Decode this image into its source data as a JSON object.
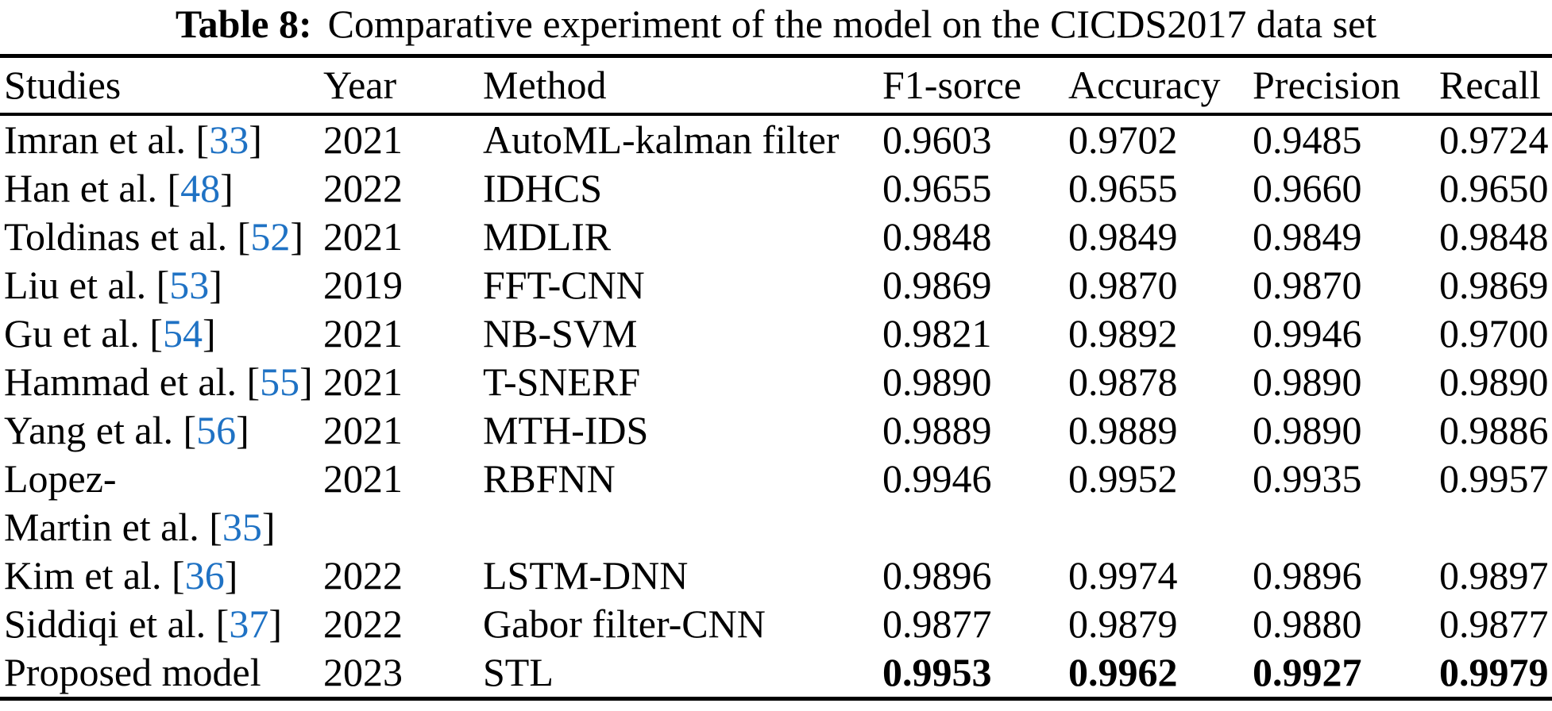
{
  "caption": {
    "label": "Table 8:",
    "text": "Comparative experiment of the model on the CICDS2017 data set"
  },
  "table": {
    "columns": [
      "Studies",
      "Year",
      "Method",
      "F1-sorce",
      "Accuracy",
      "Precision",
      "Recall"
    ],
    "rows": [
      {
        "study": [
          {
            "text": "Imran et al. ["
          },
          {
            "text": "33",
            "citation": true
          },
          {
            "text": "]"
          }
        ],
        "year": "2021",
        "method": "AutoML-kalman filter",
        "f1": "0.9603",
        "accuracy": "0.9702",
        "precision": "0.9485",
        "recall": "0.9724",
        "metrics_bold": false
      },
      {
        "study": [
          {
            "text": "Han et al. ["
          },
          {
            "text": "48",
            "citation": true
          },
          {
            "text": "]"
          }
        ],
        "year": "2022",
        "method": "IDHCS",
        "f1": "0.9655",
        "accuracy": "0.9655",
        "precision": "0.9660",
        "recall": "0.9650",
        "metrics_bold": false
      },
      {
        "study": [
          {
            "text": "Toldinas et al. ["
          },
          {
            "text": "52",
            "citation": true
          },
          {
            "text": "]"
          }
        ],
        "year": "2021",
        "method": "MDLIR",
        "f1": "0.9848",
        "accuracy": "0.9849",
        "precision": "0.9849",
        "recall": "0.9848",
        "metrics_bold": false
      },
      {
        "study": [
          {
            "text": "Liu et al. ["
          },
          {
            "text": "53",
            "citation": true
          },
          {
            "text": "]"
          }
        ],
        "year": "2019",
        "method": "FFT-CNN",
        "f1": "0.9869",
        "accuracy": "0.9870",
        "precision": "0.9870",
        "recall": "0.9869",
        "metrics_bold": false
      },
      {
        "study": [
          {
            "text": "Gu et al. ["
          },
          {
            "text": "54",
            "citation": true
          },
          {
            "text": "]"
          }
        ],
        "year": "2021",
        "method": "NB-SVM",
        "f1": "0.9821",
        "accuracy": "0.9892",
        "precision": "0.9946",
        "recall": "0.9700",
        "metrics_bold": false
      },
      {
        "study": [
          {
            "text": "Hammad et al. ["
          },
          {
            "text": "55",
            "citation": true
          },
          {
            "text": "]"
          }
        ],
        "year": "2021",
        "method": "T-SNERF",
        "f1": "0.9890",
        "accuracy": "0.9878",
        "precision": "0.9890",
        "recall": "0.9890",
        "metrics_bold": false
      },
      {
        "study": [
          {
            "text": "Yang et al. ["
          },
          {
            "text": "56",
            "citation": true
          },
          {
            "text": "]"
          }
        ],
        "year": "2021",
        "method": "MTH-IDS",
        "f1": "0.9889",
        "accuracy": "0.9889",
        "precision": "0.9890",
        "recall": "0.9886",
        "metrics_bold": false
      },
      {
        "study": [
          {
            "text": "Lopez-"
          },
          {
            "break": true
          },
          {
            "text": "Martin et al. ["
          },
          {
            "text": "35",
            "citation": true
          },
          {
            "text": "]"
          }
        ],
        "year": "2021",
        "method": "RBFNN",
        "f1": "0.9946",
        "accuracy": "0.9952",
        "precision": "0.9935",
        "recall": "0.9957",
        "metrics_bold": false
      },
      {
        "study": [
          {
            "text": "Kim et al. ["
          },
          {
            "text": "36",
            "citation": true
          },
          {
            "text": "]"
          }
        ],
        "year": "2022",
        "method": "LSTM-DNN",
        "f1": "0.9896",
        "accuracy": "0.9974",
        "precision": "0.9896",
        "recall": "0.9897",
        "metrics_bold": false
      },
      {
        "study": [
          {
            "text": "Siddiqi et al. ["
          },
          {
            "text": "37",
            "citation": true
          },
          {
            "text": "]"
          }
        ],
        "year": "2022",
        "method": "Gabor filter-CNN",
        "f1": "0.9877",
        "accuracy": "0.9879",
        "precision": "0.9880",
        "recall": "0.9877",
        "metrics_bold": false
      },
      {
        "study": [
          {
            "text": "Proposed model"
          }
        ],
        "year": "2023",
        "method": "STL",
        "f1": "0.9953",
        "accuracy": "0.9962",
        "precision": "0.9927",
        "recall": "0.9979",
        "metrics_bold": true
      }
    ]
  },
  "colors": {
    "citation_link": "#1f72c4",
    "text": "#000000",
    "rule": "#000000",
    "background": "#ffffff"
  }
}
